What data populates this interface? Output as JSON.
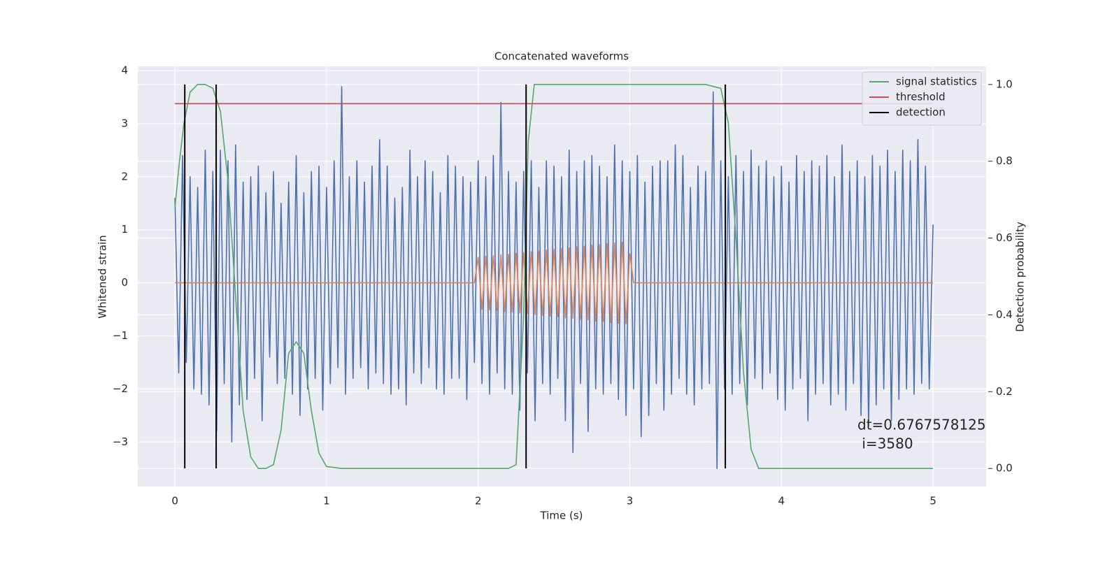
{
  "chart_data": {
    "type": "line",
    "title": "Concatenated waveforms",
    "xlabel": "Time (s)",
    "ylabel": "Whitened strain",
    "y2label": "Detection probability",
    "xlim": [
      -0.245,
      5.35
    ],
    "ylim": [
      -3.84,
      4.08
    ],
    "y2lim": [
      -0.047,
      1.047
    ],
    "xticks": [
      0,
      1,
      2,
      3,
      4,
      5
    ],
    "yticks": [
      {
        "value": -3,
        "label": "−3"
      },
      {
        "value": -2,
        "label": "−2"
      },
      {
        "value": -1,
        "label": "−1"
      },
      0,
      1,
      2,
      3,
      4
    ],
    "y2ticks": [
      {
        "value": 0,
        "label": "0.0"
      },
      0.2,
      0.4,
      0.6,
      0.8,
      {
        "value": 1,
        "label": "1.0"
      }
    ],
    "grid": true,
    "legend": "upper right",
    "annotation": [
      "dt=0.6767578125",
      " i=3580"
    ],
    "x": [
      0,
      0.025,
      0.05,
      0.075,
      0.1,
      0.125,
      0.15,
      0.175,
      0.2,
      0.225,
      0.25,
      0.275,
      0.3,
      0.325,
      0.35,
      0.375,
      0.4,
      0.425,
      0.45,
      0.475,
      0.5,
      0.525,
      0.55,
      0.575,
      0.6,
      0.625,
      0.65,
      0.675,
      0.7,
      0.725,
      0.75,
      0.775,
      0.8,
      0.825,
      0.85,
      0.875,
      0.9,
      0.925,
      0.95,
      0.975,
      1,
      1.025,
      1.05,
      1.075,
      1.1,
      1.125,
      1.15,
      1.175,
      1.2,
      1.225,
      1.25,
      1.275,
      1.3,
      1.325,
      1.35,
      1.375,
      1.4,
      1.425,
      1.45,
      1.475,
      1.5,
      1.525,
      1.55,
      1.575,
      1.6,
      1.625,
      1.65,
      1.675,
      1.7,
      1.725,
      1.75,
      1.775,
      1.8,
      1.825,
      1.85,
      1.875,
      1.9,
      1.925,
      1.95,
      1.975,
      2,
      2.025,
      2.05,
      2.075,
      2.1,
      2.125,
      2.15,
      2.175,
      2.2,
      2.225,
      2.25,
      2.275,
      2.3,
      2.325,
      2.35,
      2.375,
      2.4,
      2.425,
      2.45,
      2.475,
      2.5,
      2.525,
      2.55,
      2.575,
      2.6,
      2.625,
      2.65,
      2.675,
      2.7,
      2.725,
      2.75,
      2.775,
      2.8,
      2.825,
      2.85,
      2.875,
      2.9,
      2.925,
      2.95,
      2.975,
      3,
      3.025,
      3.05,
      3.075,
      3.1,
      3.125,
      3.15,
      3.175,
      3.2,
      3.225,
      3.25,
      3.275,
      3.3,
      3.325,
      3.35,
      3.375,
      3.4,
      3.425,
      3.45,
      3.475,
      3.5,
      3.525,
      3.55,
      3.575,
      3.6,
      3.625,
      3.65,
      3.675,
      3.7,
      3.725,
      3.75,
      3.775,
      3.8,
      3.825,
      3.85,
      3.875,
      3.9,
      3.925,
      3.95,
      3.975,
      4,
      4.025,
      4.05,
      4.075,
      4.1,
      4.125,
      4.15,
      4.175,
      4.2,
      4.225,
      4.25,
      4.275,
      4.3,
      4.325,
      4.35,
      4.375,
      4.4,
      4.425,
      4.45,
      4.475,
      4.5,
      4.525,
      4.55,
      4.575,
      4.6,
      4.625,
      4.65,
      4.675,
      4.7,
      4.725,
      4.75,
      4.775,
      4.8,
      4.825,
      4.85,
      4.875,
      4.9,
      4.925,
      4.95,
      4.975,
      5
    ],
    "series": [
      {
        "color": "#4c72b0",
        "values": [
          1.6,
          -1.7,
          2.4,
          -1.5,
          2.0,
          -2.0,
          1.8,
          -2.1,
          2.5,
          -2.3,
          2.1,
          -2.8,
          2.5,
          -1.9,
          2.3,
          -3.0,
          2.6,
          -2.3,
          1.9,
          -2.2,
          2.0,
          -1.8,
          2.2,
          -2.6,
          1.7,
          -1.4,
          2.1,
          -1.9,
          1.5,
          -1.8,
          1.9,
          -2.1,
          2.4,
          -2.5,
          1.7,
          -2.0,
          2.1,
          -1.8,
          2.2,
          -2.4,
          1.8,
          -1.9,
          2.3,
          -1.6,
          3.7,
          -2.1,
          2.0,
          -1.8,
          2.3,
          -1.6,
          1.9,
          -2.0,
          2.2,
          -1.7,
          2.7,
          -1.9,
          2.2,
          -2.1,
          1.6,
          -2.0,
          1.8,
          -2.3,
          2.5,
          -1.7,
          2.0,
          -1.9,
          2.3,
          -1.6,
          2.1,
          -2.0,
          1.7,
          -2.1,
          2.4,
          -1.8,
          2.2,
          -1.8,
          2.0,
          -2.2,
          1.9,
          -1.5,
          2.3,
          -1.9,
          2.0,
          -2.1,
          2.4,
          -1.7,
          3.4,
          -2.0,
          2.1,
          -2.1,
          1.9,
          -2.4,
          2.1,
          -1.7,
          2.3,
          -2.6,
          1.8,
          -1.9,
          2.3,
          -2.1,
          2.2,
          -1.8,
          2.0,
          -2.6,
          2.5,
          -3.2,
          2.1,
          -1.9,
          2.3,
          -2.8,
          2.4,
          -2.0,
          2.2,
          -2.1,
          2.0,
          -1.9,
          2.6,
          -2.2,
          2.3,
          -2.5,
          2.1,
          -2.0,
          2.4,
          -2.9,
          1.9,
          -2.5,
          2.2,
          -1.9,
          2.3,
          -2.4,
          2.3,
          -2.1,
          2.6,
          -1.8,
          2.4,
          -2.1,
          1.8,
          -2.3,
          2.2,
          -2.0,
          2.1,
          -1.9,
          3.6,
          -3.5,
          2.3,
          -2.0,
          2.0,
          -2.1,
          2.4,
          -1.9,
          2.1,
          -2.3,
          2.5,
          -1.8,
          2.2,
          -2.0,
          2.3,
          -1.7,
          2.0,
          -2.2,
          2.2,
          -2.4,
          1.9,
          -2.0,
          2.4,
          -1.8,
          2.1,
          -2.6,
          2.3,
          -2.1,
          2.2,
          -1.9,
          2.4,
          -2.3,
          2.0,
          -2.1,
          2.6,
          -2.4,
          2.1,
          -1.9,
          2.3,
          -2.5,
          2.0,
          -2.7,
          2.4,
          -2.3,
          2.2,
          -2.0,
          2.5,
          -2.6,
          2.1,
          -2.2,
          2.5,
          -2.0,
          2.3,
          -2.1,
          2.7,
          -1.9,
          2.2,
          -2.0,
          1.1
        ]
      },
      {
        "color": "#dd8452",
        "values": [
          0,
          0,
          0,
          0,
          0,
          0,
          0,
          0,
          0,
          0,
          0,
          0,
          0,
          0,
          0,
          0,
          0,
          0,
          0,
          0,
          0,
          0,
          0,
          0,
          0,
          0,
          0,
          0,
          0,
          0,
          0,
          0,
          0,
          0,
          0,
          0,
          0,
          0,
          0,
          0,
          0,
          0,
          0,
          0,
          0,
          0,
          0,
          0,
          0,
          0,
          0,
          0,
          0,
          0,
          0,
          0,
          0,
          0,
          0,
          0,
          0,
          0,
          0,
          0,
          0,
          0,
          0,
          0,
          0,
          0,
          0,
          0,
          0,
          0,
          0,
          0,
          0,
          0,
          0,
          0,
          0.48,
          -0.5,
          0.5,
          -0.51,
          0.51,
          -0.52,
          0.53,
          -0.54,
          0.54,
          -0.55,
          0.56,
          -0.57,
          0.57,
          -0.58,
          0.59,
          -0.6,
          0.6,
          -0.61,
          0.62,
          -0.63,
          0.63,
          -0.64,
          0.65,
          -0.66,
          0.66,
          -0.67,
          0.68,
          -0.69,
          0.69,
          -0.7,
          0.71,
          -0.72,
          0.72,
          -0.73,
          0.74,
          -0.75,
          0.75,
          -0.76,
          0.77,
          -0.77,
          0.55,
          0,
          0,
          0,
          0,
          0,
          0,
          0,
          0,
          0,
          0,
          0,
          0,
          0,
          0,
          0,
          0,
          0,
          0,
          0,
          0,
          0,
          0,
          0,
          0,
          0,
          0,
          0,
          0,
          0,
          0,
          0,
          0,
          0,
          0,
          0,
          0,
          0,
          0,
          0,
          0,
          0,
          0,
          0,
          0,
          0,
          0,
          0,
          0,
          0,
          0,
          0,
          0,
          0,
          0,
          0,
          0,
          0,
          0,
          0,
          0,
          0,
          0,
          0,
          0,
          0,
          0,
          0,
          0,
          0,
          0,
          0,
          0,
          0,
          0,
          0,
          0,
          0,
          0,
          0,
          0
        ]
      },
      {
        "name": "signal statistics",
        "color": "#55a868",
        "axis": "y2",
        "x": [
          0,
          0.03,
          0.06,
          0.1,
          0.15,
          0.2,
          0.25,
          0.3,
          0.35,
          0.4,
          0.45,
          0.5,
          0.55,
          0.6,
          0.65,
          0.7,
          0.75,
          0.8,
          0.85,
          0.9,
          0.95,
          1.0,
          1.1,
          2.2,
          2.25,
          2.3,
          2.33,
          2.37,
          2.5,
          3.5,
          3.6,
          3.65,
          3.7,
          3.75,
          3.8,
          3.85,
          5.0
        ],
        "values": [
          0.68,
          0.8,
          0.9,
          0.98,
          1.0,
          1.0,
          0.99,
          0.93,
          0.75,
          0.45,
          0.15,
          0.03,
          0.0,
          0.0,
          0.01,
          0.1,
          0.3,
          0.33,
          0.3,
          0.15,
          0.04,
          0.005,
          0.0,
          0.0,
          0.01,
          0.4,
          0.85,
          1.0,
          1.0,
          1.0,
          0.99,
          0.9,
          0.6,
          0.25,
          0.05,
          0.0,
          0.0
        ]
      },
      {
        "name": "threshold",
        "color": "#c44e52",
        "axis": "y2",
        "x": [
          0,
          5
        ],
        "values": [
          0.95,
          0.95
        ]
      },
      {
        "name": "detection",
        "color": "#000000",
        "axis": "y2",
        "type": "stem",
        "x": [
          0.065,
          0.272,
          2.316,
          3.63
        ],
        "values": [
          1,
          1,
          1,
          1
        ]
      }
    ]
  }
}
